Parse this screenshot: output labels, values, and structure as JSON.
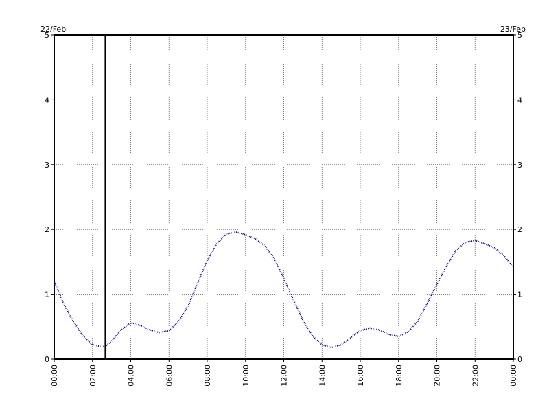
{
  "chart_data": {
    "type": "line",
    "date_left": "22/Feb",
    "date_right": "23/Feb",
    "x_tick_labels": [
      "00:00",
      "02:00",
      "04:00",
      "06:00",
      "08:00",
      "10:00",
      "12:00",
      "14:00",
      "16:00",
      "18:00",
      "20:00",
      "22:00",
      "00:00"
    ],
    "y_tick_labels": [
      "0",
      "1",
      "2",
      "3",
      "4",
      "5"
    ],
    "xlim": [
      0,
      24
    ],
    "ylim": [
      0,
      5
    ],
    "grid": true,
    "marker_time": 2.67,
    "colors": {
      "series": "#00008b",
      "grid": "#555555",
      "axis": "#000000",
      "marker": "#000000"
    },
    "series": [
      {
        "x": [
          0,
          0.5,
          1,
          1.5,
          2,
          2.5,
          2.7,
          3,
          3.5,
          4,
          4.5,
          5,
          5.5,
          6,
          6.5,
          7,
          7.5,
          8,
          8.5,
          9,
          9.5,
          10,
          10.5,
          11,
          11.5,
          12,
          12.5,
          13,
          13.5,
          14,
          14.5,
          15,
          15.5,
          16,
          16.5,
          17,
          17.5,
          18,
          18.5,
          19,
          19.5,
          20,
          20.5,
          21,
          21.5,
          22,
          22.5,
          23,
          23.5,
          24
        ],
        "y": [
          1.2,
          0.85,
          0.58,
          0.36,
          0.22,
          0.19,
          0.2,
          0.28,
          0.45,
          0.56,
          0.52,
          0.45,
          0.41,
          0.44,
          0.58,
          0.82,
          1.18,
          1.52,
          1.78,
          1.93,
          1.96,
          1.92,
          1.86,
          1.75,
          1.55,
          1.25,
          0.92,
          0.6,
          0.36,
          0.22,
          0.18,
          0.22,
          0.33,
          0.44,
          0.48,
          0.45,
          0.38,
          0.35,
          0.42,
          0.58,
          0.86,
          1.15,
          1.43,
          1.68,
          1.8,
          1.83,
          1.78,
          1.72,
          1.6,
          1.42
        ]
      }
    ]
  }
}
